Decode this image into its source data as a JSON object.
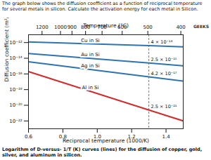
{
  "chart_data": {
    "type": "line",
    "title": "The graph below shows the diffusion coefficient as a function of reciprocal temperature for several metals in silicon.  Calculate the activation energy for each metal in Silicon.",
    "caption": "Logarithm of D-versus- 1/T (K) curves (lines) for the diffusion of copper, gold, silver, and aluminum in silicon.",
    "logo_text": "GEEKS",
    "xlabel": "Reciprocal temperature (1000/K)",
    "ylabel": "Diffusion coefficient (m²/s)",
    "x2label": "Temperature (°C)",
    "xlim": [
      0.6,
      1.5
    ],
    "xticks": [
      0.6,
      0.8,
      {
        "value": 1,
        "label": "1.0"
      },
      1.2,
      1.4
    ],
    "x2ticks": [
      {
        "value": 0.679,
        "label": "1200"
      },
      {
        "value": 0.786,
        "label": "1000"
      },
      {
        "value": 0.853,
        "label": "900"
      },
      {
        "value": 0.932,
        "label": "800"
      },
      {
        "value": 1.028,
        "label": "700"
      },
      {
        "value": 1.145,
        "label": "600"
      },
      {
        "value": 1.294,
        "label": "500"
      },
      {
        "value": 1.486,
        "label": "400"
      }
    ],
    "ylim": [
      1e-23,
      1e-11
    ],
    "yticks": [
      {
        "value": 1e-12,
        "label": "10⁻¹²"
      },
      {
        "value": 1e-14,
        "label": "10⁻¹⁴"
      },
      {
        "value": 1e-16,
        "label": "10⁻¹⁶"
      },
      {
        "value": 1e-18,
        "label": "10⁻¹⁸"
      },
      {
        "value": 1e-20,
        "label": "10⁻²⁰"
      },
      {
        "value": 1e-22,
        "label": "10⁻²²"
      }
    ],
    "log": "y",
    "grid": false,
    "x": [
      0.6,
      1.3,
      1.5
    ],
    "series": [
      {
        "name": "Cu in Si",
        "color": "#2e74b5",
        "values": [
          1.2e-12,
          4e-13,
          2.9e-13
        ]
      },
      {
        "name": "Au in Si",
        "color": "#2e74b5",
        "values": [
          4e-14,
          2.5e-15,
          1.1e-15
        ]
      },
      {
        "name": "Ag in Si",
        "color": "#2e74b5",
        "values": [
          3.5e-15,
          4.2e-17,
          1.2e-17
        ]
      },
      {
        "name": "Al in Si",
        "color": "#d42a2a",
        "values": [
          2e-16,
          2.5e-21,
          1e-22
        ]
      }
    ],
    "annotations": [
      {
        "x": 1.3,
        "y": 4e-13,
        "text": "4 × 10⁻¹³"
      },
      {
        "x": 1.3,
        "y": 2.5e-15,
        "text": "2.5 × 10⁻¹⁵"
      },
      {
        "x": 1.3,
        "y": 4.2e-17,
        "text": "4.2 × 10⁻¹⁷"
      },
      {
        "x": 1.3,
        "y": 2.5e-21,
        "text": "2.5 × 10⁻²¹"
      }
    ]
  }
}
